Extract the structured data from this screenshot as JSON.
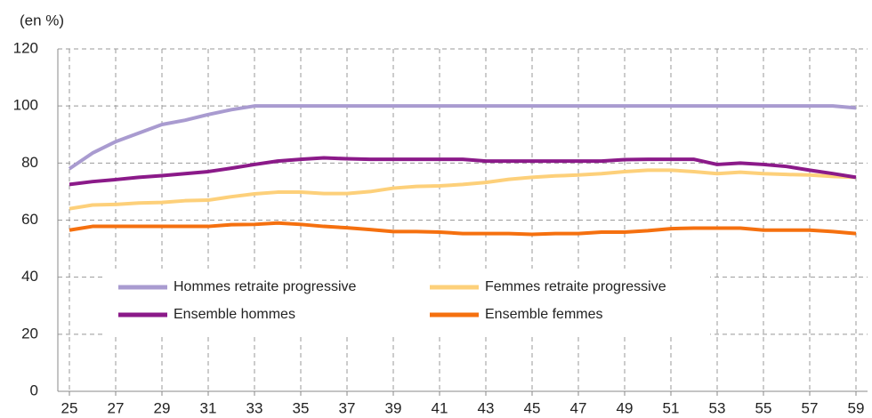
{
  "chart_data": {
    "type": "line",
    "y_label": "(en %)",
    "x": [
      25,
      26,
      27,
      28,
      29,
      30,
      31,
      32,
      33,
      34,
      35,
      36,
      37,
      38,
      39,
      40,
      41,
      42,
      43,
      44,
      45,
      46,
      47,
      48,
      49,
      50,
      51,
      52,
      53,
      54,
      55,
      56,
      57,
      58,
      59
    ],
    "xlim": [
      24.5,
      59.5
    ],
    "xticks": [
      25,
      27,
      29,
      31,
      33,
      35,
      37,
      39,
      41,
      43,
      45,
      47,
      49,
      51,
      53,
      55,
      57,
      59
    ],
    "ylim": [
      0,
      120
    ],
    "yticks": [
      0,
      20,
      40,
      60,
      80,
      100,
      120
    ],
    "grid": true,
    "series": [
      {
        "name": "Hommes retraite progressive",
        "color": "#a99bd0",
        "values": [
          78,
          83.5,
          87.5,
          90.5,
          93.5,
          95,
          97,
          98.7,
          100,
          100,
          100,
          100,
          100,
          100,
          100,
          100,
          100,
          100,
          100,
          100,
          100,
          100,
          100,
          100,
          100,
          100,
          100,
          100,
          100,
          100,
          100,
          100,
          100,
          100,
          99.3
        ]
      },
      {
        "name": "Femmes retraite progressive",
        "color": "#fdd07a",
        "values": [
          64,
          65.3,
          65.5,
          66,
          66.2,
          66.8,
          67,
          68.2,
          69.2,
          69.8,
          69.8,
          69.3,
          69.3,
          70,
          71.2,
          71.8,
          72,
          72.5,
          73.2,
          74.3,
          75,
          75.5,
          75.8,
          76.3,
          77,
          77.5,
          77.5,
          77,
          76.3,
          76.8,
          76.3,
          76,
          75.8,
          75.3,
          75
        ]
      },
      {
        "name": "Ensemble hommes",
        "color": "#8b1a89",
        "values": [
          72.5,
          73.5,
          74.2,
          75,
          75.6,
          76.3,
          77,
          78.2,
          79.5,
          80.7,
          81.3,
          81.8,
          81.5,
          81.3,
          81.3,
          81.3,
          81.3,
          81.3,
          80.7,
          80.7,
          80.7,
          80.7,
          80.7,
          80.7,
          81.2,
          81.3,
          81.3,
          81.3,
          79.5,
          80,
          79.5,
          78.8,
          77.5,
          76.3,
          75
        ]
      },
      {
        "name": "Ensemble femmes",
        "color": "#f5700f",
        "values": [
          56.5,
          57.8,
          57.8,
          57.8,
          57.8,
          57.8,
          57.8,
          58.4,
          58.5,
          59,
          58.5,
          57.8,
          57.3,
          56.7,
          56,
          56,
          55.8,
          55.3,
          55.3,
          55.3,
          55,
          55.3,
          55.3,
          55.8,
          55.8,
          56.3,
          57,
          57.2,
          57.2,
          57.2,
          56.5,
          56.5,
          56.5,
          56,
          55.3
        ]
      }
    ]
  }
}
